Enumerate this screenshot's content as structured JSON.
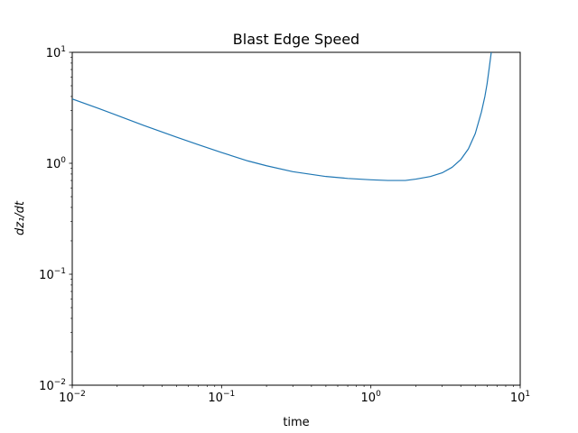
{
  "chart_data": {
    "type": "line",
    "title": "Blast Edge Speed",
    "xlabel": "time",
    "ylabel": "dz₁/dt",
    "xscale": "log",
    "yscale": "log",
    "xlim": [
      0.01,
      10
    ],
    "ylim": [
      0.01,
      10
    ],
    "x_ticks": [
      {
        "value": 0.01,
        "base": "10",
        "exp": "−2"
      },
      {
        "value": 0.1,
        "base": "10",
        "exp": "−1"
      },
      {
        "value": 1,
        "base": "10",
        "exp": "0"
      },
      {
        "value": 10,
        "base": "10",
        "exp": "1"
      }
    ],
    "y_ticks": [
      {
        "value": 0.01,
        "base": "10",
        "exp": "−2"
      },
      {
        "value": 0.1,
        "base": "10",
        "exp": "−1"
      },
      {
        "value": 1,
        "base": "10",
        "exp": "0"
      },
      {
        "value": 10,
        "base": "10",
        "exp": "1"
      }
    ],
    "grid": false,
    "line_color": "#1f77b4",
    "series": [
      {
        "x": [
          0.01,
          0.015,
          0.02,
          0.03,
          0.05,
          0.07,
          0.1,
          0.15,
          0.2,
          0.3,
          0.5,
          0.7,
          1.0,
          1.3,
          1.7,
          2.0,
          2.5,
          3.0,
          3.5,
          4.0,
          4.5,
          5.0,
          5.5,
          5.8,
          6.0,
          6.2,
          6.4
        ],
        "y": [
          3.8,
          3.12,
          2.7,
          2.2,
          1.72,
          1.47,
          1.25,
          1.05,
          0.95,
          0.84,
          0.76,
          0.73,
          0.71,
          0.7,
          0.7,
          0.72,
          0.76,
          0.82,
          0.92,
          1.08,
          1.35,
          1.85,
          2.9,
          4.0,
          5.2,
          7.2,
          10.0
        ]
      }
    ]
  }
}
